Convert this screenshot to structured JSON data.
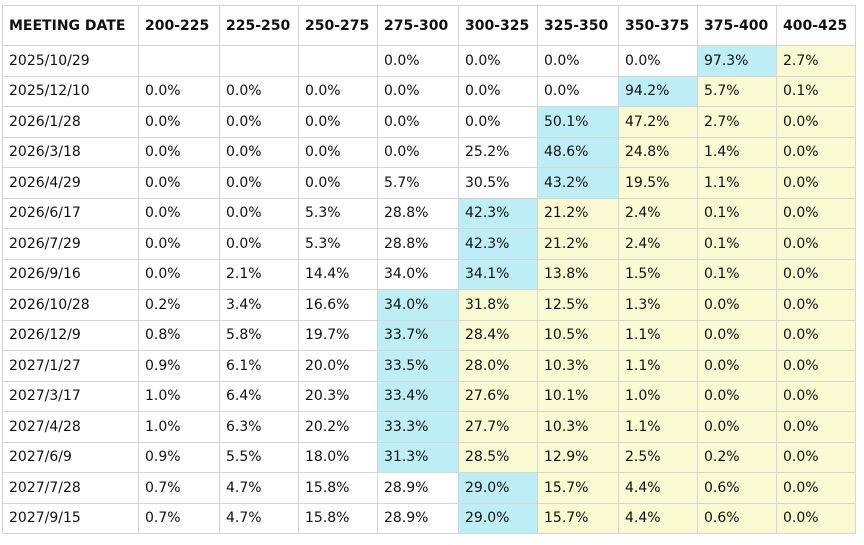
{
  "chart_data": {
    "type": "table",
    "columns": [
      "MEETING DATE",
      "200-225",
      "225-250",
      "250-275",
      "275-300",
      "300-325",
      "325-350",
      "350-375",
      "375-400",
      "400-425"
    ],
    "rows": [
      {
        "date": "2025/10/29",
        "values": [
          "",
          "",
          "",
          "0.0%",
          "0.0%",
          "0.0%",
          "0.0%",
          "97.3%",
          "2.7%"
        ]
      },
      {
        "date": "2025/12/10",
        "values": [
          "0.0%",
          "0.0%",
          "0.0%",
          "0.0%",
          "0.0%",
          "0.0%",
          "94.2%",
          "5.7%",
          "0.1%"
        ]
      },
      {
        "date": "2026/1/28",
        "values": [
          "0.0%",
          "0.0%",
          "0.0%",
          "0.0%",
          "0.0%",
          "50.1%",
          "47.2%",
          "2.7%",
          "0.0%"
        ]
      },
      {
        "date": "2026/3/18",
        "values": [
          "0.0%",
          "0.0%",
          "0.0%",
          "0.0%",
          "25.2%",
          "48.6%",
          "24.8%",
          "1.4%",
          "0.0%"
        ]
      },
      {
        "date": "2026/4/29",
        "values": [
          "0.0%",
          "0.0%",
          "0.0%",
          "5.7%",
          "30.5%",
          "43.2%",
          "19.5%",
          "1.1%",
          "0.0%"
        ]
      },
      {
        "date": "2026/6/17",
        "values": [
          "0.0%",
          "0.0%",
          "5.3%",
          "28.8%",
          "42.3%",
          "21.2%",
          "2.4%",
          "0.1%",
          "0.0%"
        ]
      },
      {
        "date": "2026/7/29",
        "values": [
          "0.0%",
          "0.0%",
          "5.3%",
          "28.8%",
          "42.3%",
          "21.2%",
          "2.4%",
          "0.1%",
          "0.0%"
        ]
      },
      {
        "date": "2026/9/16",
        "values": [
          "0.0%",
          "2.1%",
          "14.4%",
          "34.0%",
          "34.1%",
          "13.8%",
          "1.5%",
          "0.1%",
          "0.0%"
        ]
      },
      {
        "date": "2026/10/28",
        "values": [
          "0.2%",
          "3.4%",
          "16.6%",
          "34.0%",
          "31.8%",
          "12.5%",
          "1.3%",
          "0.0%",
          "0.0%"
        ]
      },
      {
        "date": "2026/12/9",
        "values": [
          "0.8%",
          "5.8%",
          "19.7%",
          "33.7%",
          "28.4%",
          "10.5%",
          "1.1%",
          "0.0%",
          "0.0%"
        ]
      },
      {
        "date": "2027/1/27",
        "values": [
          "0.9%",
          "6.1%",
          "20.0%",
          "33.5%",
          "28.0%",
          "10.3%",
          "1.1%",
          "0.0%",
          "0.0%"
        ]
      },
      {
        "date": "2027/3/17",
        "values": [
          "1.0%",
          "6.4%",
          "20.3%",
          "33.4%",
          "27.6%",
          "10.1%",
          "1.0%",
          "0.0%",
          "0.0%"
        ]
      },
      {
        "date": "2027/4/28",
        "values": [
          "1.0%",
          "6.3%",
          "20.2%",
          "33.3%",
          "27.7%",
          "10.3%",
          "1.1%",
          "0.0%",
          "0.0%"
        ]
      },
      {
        "date": "2027/6/9",
        "values": [
          "0.9%",
          "5.5%",
          "18.0%",
          "31.3%",
          "28.5%",
          "12.9%",
          "2.5%",
          "0.2%",
          "0.0%"
        ]
      },
      {
        "date": "2027/7/28",
        "values": [
          "0.7%",
          "4.7%",
          "15.8%",
          "28.9%",
          "29.0%",
          "15.7%",
          "4.4%",
          "0.6%",
          "0.0%"
        ]
      },
      {
        "date": "2027/9/15",
        "values": [
          "0.7%",
          "4.7%",
          "15.8%",
          "28.9%",
          "29.0%",
          "15.7%",
          "4.4%",
          "0.6%",
          "0.0%"
        ]
      }
    ],
    "colors": {
      "highlight_max": "#bdeef6",
      "highlight_rate_path": "#fafad2",
      "grid": "#d4d4d4",
      "text": "#111111"
    }
  }
}
